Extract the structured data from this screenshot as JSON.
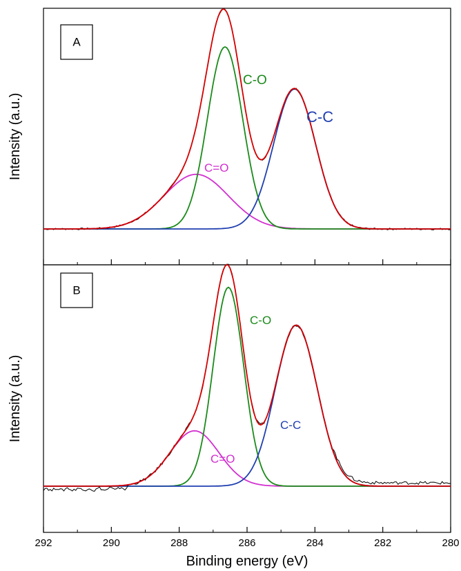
{
  "chart_data": [
    {
      "type": "line",
      "panel_label": "A",
      "ylabel": "Intensity (a.u.)",
      "xlim": [
        292,
        280
      ],
      "x_reversed": true,
      "y_ticks_shown": false,
      "components": [
        {
          "label": "C=O",
          "color": "#d22fd0",
          "center": 287.5,
          "height": 0.24,
          "sigma": 0.95
        },
        {
          "label": "C-O",
          "color": "#1a8a1a",
          "center": 286.65,
          "height": 0.8,
          "sigma": 0.52
        },
        {
          "label": "C-C",
          "color": "#1f3fb0",
          "center": 284.6,
          "height": 0.615,
          "sigma": 0.62
        }
      ],
      "envelope_color": "#d40000",
      "raw_color": "#000000"
    },
    {
      "type": "line",
      "panel_label": "B",
      "ylabel": "Intensity (a.u.)",
      "xlabel": "Binding energy (eV)",
      "xlim": [
        292,
        280
      ],
      "x_reversed": true,
      "x_ticks": [
        292,
        290,
        288,
        286,
        284,
        282,
        280
      ],
      "y_ticks_shown": false,
      "components": [
        {
          "label": "C=O",
          "color": "#d22fd0",
          "center": 287.55,
          "height": 0.22,
          "sigma": 0.72
        },
        {
          "label": "C-O",
          "color": "#1a8a1a",
          "center": 286.55,
          "height": 0.79,
          "sigma": 0.45
        },
        {
          "label": "C-C",
          "color": "#1f3fb0",
          "center": 284.55,
          "height": 0.64,
          "sigma": 0.62
        }
      ],
      "envelope_color": "#d40000",
      "raw_color": "#000000"
    }
  ]
}
